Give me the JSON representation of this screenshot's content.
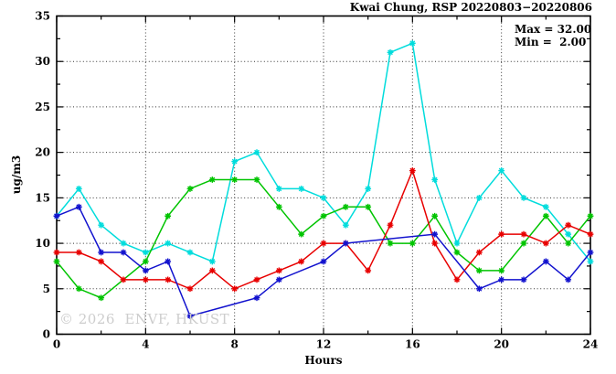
{
  "header": {
    "title": "Kwai Chung, RSP 20220803−20220806"
  },
  "annotation": {
    "max": "Max = 32.00",
    "min": "Min =  2.00"
  },
  "watermark": "© 2026  ENVF, HKUST",
  "chart_data": {
    "type": "line",
    "title": "Kwai Chung, RSP 20220803−20220806",
    "xlabel": "Hours",
    "ylabel": "ug/m3",
    "xlim": [
      0,
      24
    ],
    "ylim": [
      0,
      35
    ],
    "x_major_ticks": [
      0,
      4,
      8,
      12,
      16,
      20,
      24
    ],
    "x_minor_tick_step": 2,
    "y_major_ticks": [
      0,
      5,
      10,
      15,
      20,
      25,
      30,
      35
    ],
    "y_minor_tick_step": 2.5,
    "grid": "dotted-at-major-ticks",
    "legend": "none",
    "stats": {
      "max": 32.0,
      "min": 2.0
    },
    "series": [
      {
        "name": "cyan-series",
        "color": "#00DCDC",
        "marker": "asterisk",
        "points": [
          [
            0,
            13
          ],
          [
            1,
            16
          ],
          [
            2,
            12
          ],
          [
            3,
            10
          ],
          [
            4,
            9
          ],
          [
            5,
            10
          ],
          [
            6,
            9
          ],
          [
            7,
            8
          ],
          [
            8,
            19
          ],
          [
            9,
            20
          ],
          [
            10,
            16
          ],
          [
            11,
            16
          ],
          [
            12,
            15
          ],
          [
            13,
            12
          ],
          [
            14,
            16
          ],
          [
            15,
            31
          ],
          [
            16,
            32
          ],
          [
            17,
            17
          ],
          [
            18,
            10
          ],
          [
            19,
            15
          ],
          [
            20,
            18
          ],
          [
            21,
            15
          ],
          [
            22,
            14
          ],
          [
            23,
            11
          ],
          [
            24,
            8
          ]
        ]
      },
      {
        "name": "green-series",
        "color": "#00C400",
        "marker": "asterisk",
        "points": [
          [
            0,
            8
          ],
          [
            1,
            5
          ],
          [
            2,
            4
          ],
          [
            4,
            8
          ],
          [
            5,
            13
          ],
          [
            6,
            16
          ],
          [
            7,
            17
          ],
          [
            8,
            17
          ],
          [
            9,
            17
          ],
          [
            10,
            14
          ],
          [
            11,
            11
          ],
          [
            12,
            13
          ],
          [
            13,
            14
          ],
          [
            14,
            14
          ],
          [
            15,
            10
          ],
          [
            16,
            10
          ],
          [
            17,
            13
          ],
          [
            18,
            9
          ],
          [
            19,
            7
          ],
          [
            20,
            7
          ],
          [
            21,
            10
          ],
          [
            22,
            13
          ],
          [
            23,
            10
          ],
          [
            24,
            13
          ]
        ]
      },
      {
        "name": "red-series",
        "color": "#E80000",
        "marker": "asterisk",
        "points": [
          [
            0,
            9
          ],
          [
            1,
            9
          ],
          [
            2,
            8
          ],
          [
            3,
            6
          ],
          [
            4,
            6
          ],
          [
            5,
            6
          ],
          [
            6,
            5
          ],
          [
            7,
            7
          ],
          [
            8,
            5
          ],
          [
            9,
            6
          ],
          [
            10,
            7
          ],
          [
            11,
            8
          ],
          [
            12,
            10
          ],
          [
            13,
            10
          ],
          [
            14,
            7
          ],
          [
            15,
            12
          ],
          [
            16,
            18
          ],
          [
            17,
            10
          ],
          [
            18,
            6
          ],
          [
            19,
            9
          ],
          [
            20,
            11
          ],
          [
            21,
            11
          ],
          [
            22,
            10
          ],
          [
            23,
            12
          ],
          [
            24,
            11
          ]
        ]
      },
      {
        "name": "blue-series",
        "color": "#1212CE",
        "marker": "asterisk",
        "points": [
          [
            0,
            13
          ],
          [
            1,
            14
          ],
          [
            2,
            9
          ],
          [
            3,
            9
          ],
          [
            4,
            7
          ],
          [
            5,
            8
          ],
          [
            6,
            2
          ],
          [
            9,
            4
          ],
          [
            10,
            6
          ],
          [
            12,
            8
          ],
          [
            13,
            10
          ],
          [
            17,
            11
          ],
          [
            19,
            5
          ],
          [
            20,
            6
          ],
          [
            21,
            6
          ],
          [
            22,
            8
          ],
          [
            23,
            6
          ],
          [
            24,
            9
          ]
        ]
      }
    ]
  }
}
